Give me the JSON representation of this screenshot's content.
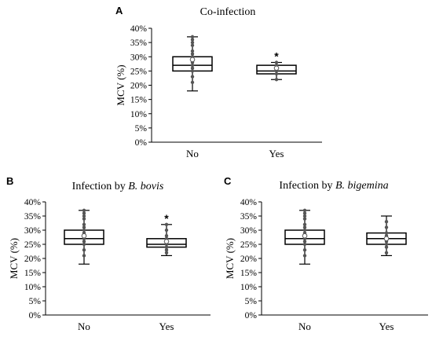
{
  "chart_data": [
    {
      "type": "boxplot",
      "panel_label": "A",
      "title": "Co-infection",
      "title_parts": [],
      "ylabel": "MCV (%)",
      "ylim": [
        0,
        40
      ],
      "yticks": [
        "0%",
        "5%",
        "10%",
        "15%",
        "20%",
        "25%",
        "30%",
        "35%",
        "40%"
      ],
      "categories": [
        "No",
        "Yes"
      ],
      "boxes": [
        {
          "category": "No",
          "min": 18,
          "q1": 25,
          "median": 27,
          "q3": 30,
          "max": 37,
          "mean": 29,
          "points": [
            21,
            23,
            25,
            26,
            27,
            28,
            29,
            30,
            31,
            32,
            34,
            35,
            36,
            37
          ]
        },
        {
          "category": "Yes",
          "min": 22,
          "q1": 24,
          "median": 25,
          "q3": 27,
          "max": 28,
          "mean": 26,
          "points": [
            22,
            24,
            25,
            26,
            27,
            28
          ]
        }
      ],
      "significance": [
        {
          "category": "Yes",
          "label": "*"
        }
      ]
    },
    {
      "type": "boxplot",
      "panel_label": "B",
      "title": "",
      "title_parts": [
        {
          "text": "Infection by ",
          "italic": false
        },
        {
          "text": "B. bovis",
          "italic": true
        }
      ],
      "ylabel": "MCV (%)",
      "ylim": [
        0,
        40
      ],
      "yticks": [
        "0%",
        "5%",
        "10%",
        "15%",
        "20%",
        "25%",
        "30%",
        "35%",
        "40%"
      ],
      "categories": [
        "No",
        "Yes"
      ],
      "boxes": [
        {
          "category": "No",
          "min": 18,
          "q1": 25,
          "median": 27,
          "q3": 30,
          "max": 37,
          "mean": 28,
          "points": [
            21,
            23,
            25,
            26,
            27,
            28,
            29,
            30,
            31,
            32,
            34,
            35,
            36,
            37
          ]
        },
        {
          "category": "Yes",
          "min": 21,
          "q1": 24,
          "median": 25,
          "q3": 27,
          "max": 32,
          "mean": 26,
          "points": [
            22,
            23,
            24,
            25,
            26,
            27,
            28,
            30,
            32
          ]
        }
      ],
      "significance": [
        {
          "category": "Yes",
          "label": "*"
        }
      ]
    },
    {
      "type": "boxplot",
      "panel_label": "C",
      "title": "",
      "title_parts": [
        {
          "text": "Infection by ",
          "italic": false
        },
        {
          "text": "B. bigemina",
          "italic": true
        }
      ],
      "ylabel": "MCV (%)",
      "ylim": [
        0,
        40
      ],
      "yticks": [
        "0%",
        "5%",
        "10%",
        "15%",
        "20%",
        "25%",
        "30%",
        "35%",
        "40%"
      ],
      "categories": [
        "No",
        "Yes"
      ],
      "boxes": [
        {
          "category": "No",
          "min": 18,
          "q1": 25,
          "median": 27,
          "q3": 30,
          "max": 37,
          "mean": 28,
          "points": [
            21,
            23,
            25,
            26,
            27,
            28,
            29,
            30,
            31,
            32,
            34,
            35,
            36,
            37
          ]
        },
        {
          "category": "Yes",
          "min": 21,
          "q1": 25,
          "median": 27,
          "q3": 29,
          "max": 35,
          "mean": 27,
          "points": [
            22,
            24,
            25,
            26,
            27,
            28,
            29,
            31,
            33
          ]
        }
      ],
      "significance": []
    }
  ]
}
